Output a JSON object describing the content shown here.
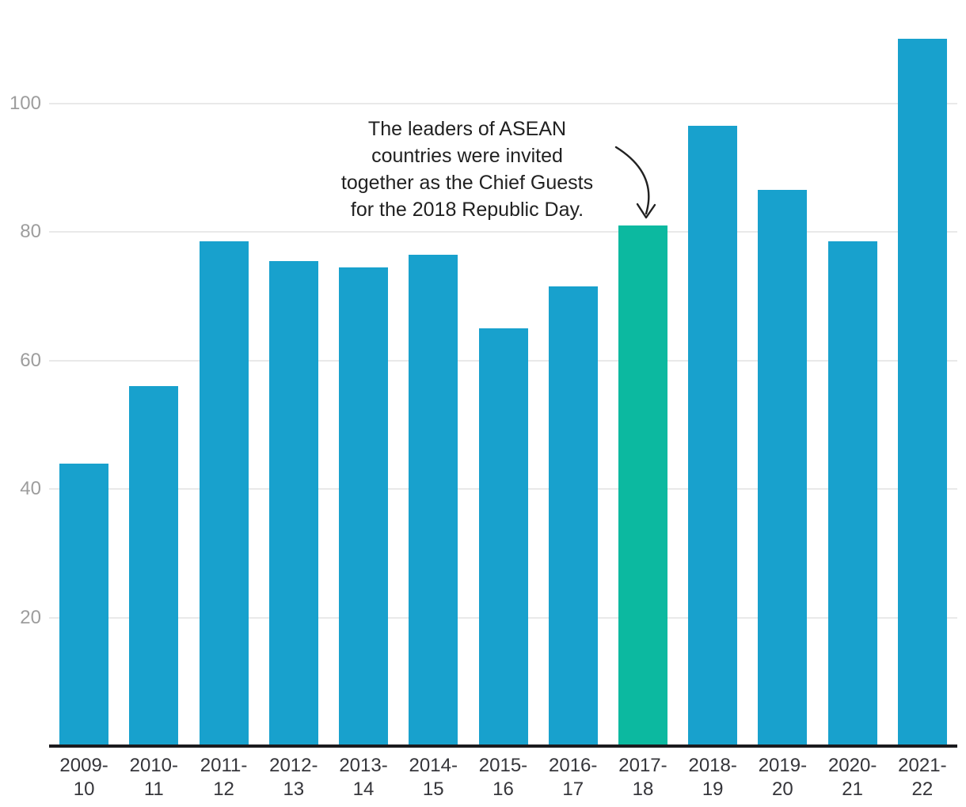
{
  "chart_data": {
    "type": "bar",
    "title": "",
    "xlabel": "",
    "ylabel": "",
    "categories": [
      "2009-10",
      "2010-11",
      "2011-12",
      "2012-13",
      "2013-14",
      "2014-15",
      "2015-16",
      "2016-17",
      "2017-18",
      "2018-19",
      "2019-20",
      "2020-21",
      "2021-22"
    ],
    "values": [
      44,
      56,
      78.5,
      75.5,
      74.5,
      76.5,
      65,
      71.5,
      81,
      96.5,
      86.5,
      78.5,
      110
    ],
    "highlight_index": 8,
    "highlighted_category": "2017-18",
    "yticks": [
      20,
      40,
      60,
      80,
      100
    ],
    "ylim": [
      0,
      116
    ],
    "grid": "horizontal-gridlines",
    "legend": "none",
    "annotation": {
      "lines": [
        "The leaders of ASEAN",
        "countries were invited",
        "together as the Chief Guests",
        "for the 2018 Republic Day."
      ],
      "target_category": "2017-18"
    },
    "colors": {
      "bar": "#18A1CD",
      "highlight_bar": "#0CB9A0",
      "gridline": "#E9E9E9",
      "axis_line": "#1B1B1E",
      "y_tick_label": "#9D9D9D",
      "x_tick_label": "#35353A",
      "annotation": "#212121"
    }
  }
}
